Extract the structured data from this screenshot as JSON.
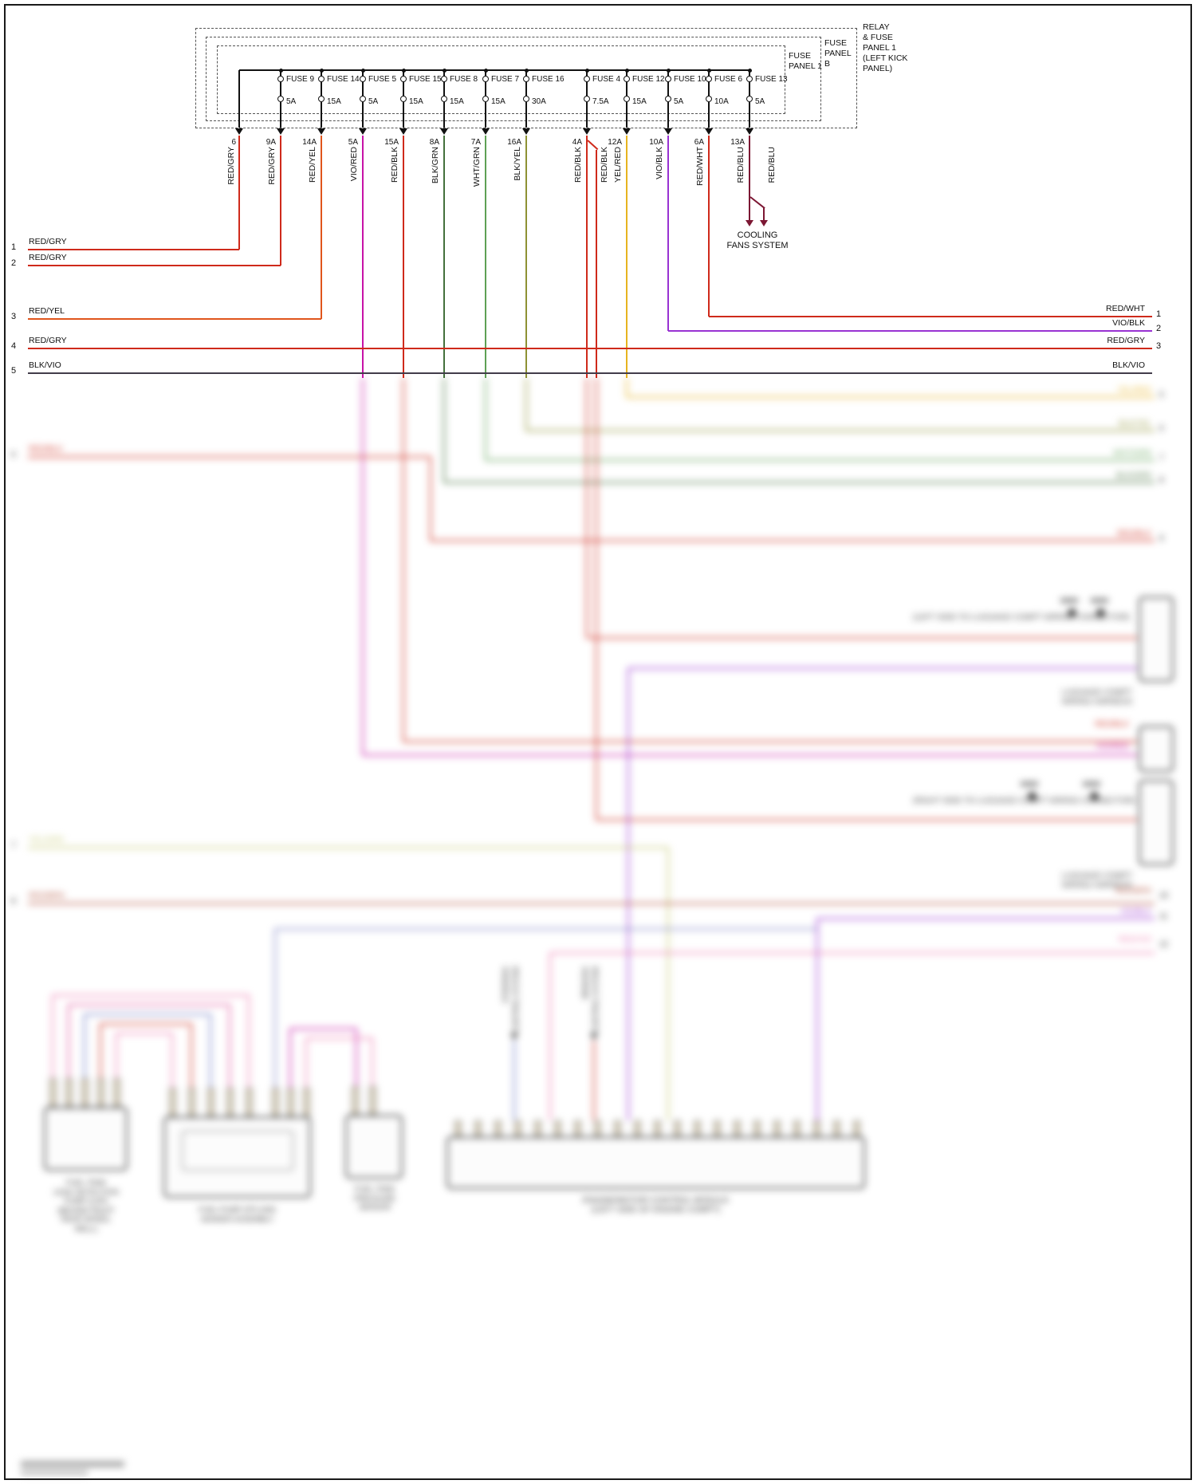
{
  "page": {
    "background": "#ffffff",
    "frame_color": "#1a1a1a"
  },
  "panel_labels": {
    "relay": [
      "RELAY",
      "& FUSE",
      "PANEL 1",
      "(LEFT KICK",
      "PANEL)"
    ],
    "panel_b": [
      "FUSE",
      "PANEL",
      "B"
    ],
    "panel_1": [
      "FUSE",
      "PANEL 1"
    ]
  },
  "bus_tap": {
    "terminal": "6",
    "wire": "RED/GRY",
    "color": "red"
  },
  "fuses": [
    {
      "name": "FUSE 9",
      "amp": "5A",
      "terminal": "9A",
      "wire": "RED/GRY",
      "color": "red"
    },
    {
      "name": "FUSE 14",
      "amp": "15A",
      "terminal": "14A",
      "wire": "RED/YEL",
      "color": "orange"
    },
    {
      "name": "FUSE 5",
      "amp": "5A",
      "terminal": "5A",
      "wire": "VIO/RED",
      "color": "magenta"
    },
    {
      "name": "FUSE 15",
      "amp": "15A",
      "terminal": "15A",
      "wire": "RED/BLK",
      "color": "red"
    },
    {
      "name": "FUSE 8",
      "amp": "15A",
      "terminal": "8A",
      "wire": "BLK/GRN",
      "color": "darkgreen"
    },
    {
      "name": "FUSE 7",
      "amp": "15A",
      "terminal": "7A",
      "wire": "WHT/GRN",
      "color": "green"
    },
    {
      "name": "FUSE 16",
      "amp": "30A",
      "terminal": "16A",
      "wire": "BLK/YEL",
      "color": "olive"
    },
    {
      "name": "FUSE 4",
      "amp": "7.5A",
      "terminal": "4A",
      "wire": "RED/BLK",
      "wire2": "RED/BLK",
      "color": "red"
    },
    {
      "name": "FUSE 12",
      "amp": "15A",
      "terminal": "12A",
      "wire": "YEL/RED",
      "color": "yellow"
    },
    {
      "name": "FUSE 10",
      "amp": "5A",
      "terminal": "10A",
      "wire": "VIO/BLK",
      "color": "purple"
    },
    {
      "name": "FUSE 6",
      "amp": "10A",
      "terminal": "6A",
      "wire": "RED/WHT",
      "color": "red"
    },
    {
      "name": "FUSE 13",
      "amp": "5A",
      "terminal": "13A",
      "wire": "RED/BLU",
      "wire2": "RED/BLU",
      "color": "maroon"
    }
  ],
  "left_pins": [
    {
      "pin": "1",
      "label": "RED/GRY",
      "color": "red"
    },
    {
      "pin": "2",
      "label": "RED/GRY",
      "color": "red"
    },
    {
      "pin": "3",
      "label": "RED/YEL",
      "color": "orange"
    },
    {
      "pin": "4",
      "label": "RED/GRY",
      "color": "red"
    },
    {
      "pin": "5",
      "label": "BLK/VIO",
      "color": "dark"
    }
  ],
  "right_pins": [
    {
      "pin": "1",
      "label": "RED/WHT",
      "color": "red"
    },
    {
      "pin": "2",
      "label": "VIO/BLK",
      "color": "purple"
    },
    {
      "pin": "3",
      "label": "RED/GRY",
      "color": "red"
    },
    {
      "pin": "",
      "label": "BLK/VIO",
      "color": "dark"
    }
  ],
  "cooling_fans": [
    "COOLING",
    "FANS SYSTEM"
  ],
  "colors": {
    "red": "#cf2a1b",
    "orange": "#e0551c",
    "magenta": "#c712a7",
    "darkgreen": "#44703c",
    "green": "#5ea054",
    "olive": "#8e9234",
    "yellow": "#e7b41f",
    "purple": "#9832d2",
    "maroon": "#7c1733",
    "dark": "#423c4a",
    "pink": "#ee7cb4",
    "magenta2": "#e05098",
    "blue": "#6c79c6",
    "slate": "#8287c9",
    "yellowgreen": "#c7cb72",
    "redbrown": "#b5503a"
  },
  "blurred_section": {
    "right_wire_labels": [
      {
        "label": "YEL/RED",
        "pin": "5",
        "color": "yellow"
      },
      {
        "label": "BLK/YEL",
        "pin": "6",
        "color": "olive"
      },
      {
        "label": "WHT/GRN",
        "pin": "7",
        "color": "green"
      },
      {
        "label": "BLK/GRN",
        "pin": "8",
        "color": "darkgreen"
      },
      {
        "label": "RED/BLK",
        "pin": "9",
        "color": "red"
      },
      {
        "label": "RED/BLK",
        "pin": "",
        "color": "red"
      },
      {
        "label": "VIO/RED",
        "pin": "",
        "color": "magenta"
      },
      {
        "label": "RED/BRN",
        "pin": "10",
        "color": "redbrown"
      },
      {
        "label": "VIO/BLK",
        "pin": "11",
        "color": "purple"
      },
      {
        "label": "RED/VIO",
        "pin": "12",
        "color": "pink"
      }
    ],
    "left_wire_labels": [
      {
        "pin": "6",
        "label": "RED/BLK",
        "color": "red"
      },
      {
        "pin": "7",
        "label": "YEL/GRN",
        "color": "yellowgreen"
      },
      {
        "pin": "8",
        "label": "RED/BRN",
        "color": "redbrown"
      }
    ],
    "components": {
      "ldp": {
        "label": [
          "FUEL TANK",
          "LEAK DETECTION",
          "PUMP (LDP)",
          "(BEHIND RIGHT",
          "REAR WHEEL",
          "WELL)"
        ]
      },
      "fuel_pump": {
        "label": [
          "FUEL PUMP (FP) AND",
          "SENDER ASSEMBLY"
        ]
      },
      "ftp_sensor": {
        "label": [
          "FUEL TANK",
          "PRESSURE",
          "SENSOR"
        ]
      },
      "ecm": {
        "label": [
          "ENGINE/MOTOR CONTROL MODULE",
          "(LEFT SIDE OF ENGINE COMPT)"
        ]
      },
      "conn_left": {
        "label": "(LEFT SIDE-TO LUGGAGE COMPT WIRING CONNECTOR)",
        "sub": [
          "LUGGAGE COMPT",
          "WIRING HARNESS"
        ]
      },
      "conn_right": {
        "label": "(RIGHT SIDE-TO LUGGAGE COMPT WIRING CONNECTOR)",
        "sub": [
          "LUGGAGE COMPT",
          "WIRING HARNESS"
        ]
      }
    },
    "system_arrows": [
      [
        "STEERING",
        "CONTROL SYSTEM"
      ],
      [
        "BRAKING",
        "CONTROL SYSTEM"
      ]
    ]
  }
}
